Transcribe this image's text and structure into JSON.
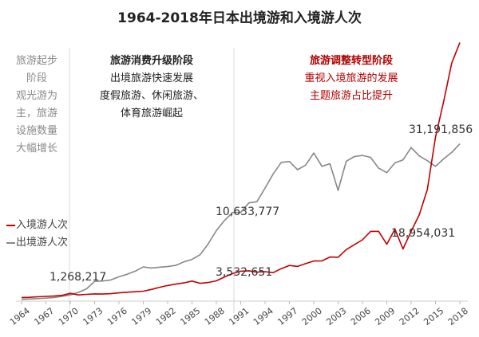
{
  "chart_data": {
    "type": "line",
    "title": "1964-2018年日本出境游和入境游人次",
    "x_tick_labels": [
      "1964",
      "1967",
      "1970",
      "1973",
      "1976",
      "1979",
      "1982",
      "1985",
      "1988",
      "1991",
      "1994",
      "1997",
      "2000",
      "2003",
      "2006",
      "2009",
      "2012",
      "2015",
      "2018"
    ],
    "xlim": [
      1964,
      2018
    ],
    "ylim": [
      0,
      32000000
    ],
    "grid": false,
    "legend_position": "left-middle",
    "series": [
      {
        "name": "入境游人次",
        "color": "#c00000",
        "x": [
          1964,
          1965,
          1966,
          1967,
          1968,
          1969,
          1970,
          1971,
          1972,
          1973,
          1974,
          1975,
          1976,
          1977,
          1978,
          1979,
          1980,
          1981,
          1982,
          1983,
          1984,
          1985,
          1986,
          1987,
          1988,
          1989,
          1990,
          1991,
          1992,
          1993,
          1994,
          1995,
          1996,
          1997,
          1998,
          1999,
          2000,
          2001,
          2002,
          2003,
          2004,
          2005,
          2006,
          2007,
          2008,
          2009,
          2010,
          2011,
          2012,
          2013,
          2014,
          2015,
          2016,
          2017,
          2018
        ],
        "y": [
          350000,
          370000,
          430000,
          480000,
          520000,
          610000,
          850000,
          660000,
          720000,
          780000,
          760000,
          810000,
          910000,
          980000,
          1040000,
          1110000,
          1320000,
          1580000,
          1790000,
          1970000,
          2110000,
          2330000,
          2060000,
          2160000,
          2360000,
          2830000,
          3240000,
          3530000,
          3580000,
          3410000,
          3470000,
          3350000,
          3840000,
          4220000,
          4110000,
          4440000,
          4760000,
          4770000,
          5240000,
          5210000,
          6140000,
          6730000,
          7330000,
          8350000,
          8350000,
          6790000,
          8610000,
          6220000,
          8360000,
          10360000,
          13410000,
          19740000,
          24040000,
          28690000,
          31191856
        ]
      },
      {
        "name": "出境游人次",
        "color": "#888888",
        "x": [
          1964,
          1965,
          1966,
          1967,
          1968,
          1969,
          1970,
          1971,
          1972,
          1973,
          1974,
          1975,
          1976,
          1977,
          1978,
          1979,
          1980,
          1981,
          1982,
          1983,
          1984,
          1985,
          1986,
          1987,
          1988,
          1989,
          1990,
          1991,
          1992,
          1993,
          1994,
          1995,
          1996,
          1997,
          1998,
          1999,
          2000,
          2001,
          2002,
          2003,
          2004,
          2005,
          2006,
          2007,
          2008,
          2009,
          2010,
          2011,
          2012,
          2013,
          2014,
          2015,
          2016,
          2017,
          2018
        ],
        "y": [
          130000,
          160000,
          210000,
          270000,
          340000,
          490000,
          660000,
          960000,
          1390000,
          2290000,
          2340000,
          2470000,
          2850000,
          3150000,
          3530000,
          4040000,
          3910000,
          4010000,
          4090000,
          4230000,
          4660000,
          4950000,
          5520000,
          6830000,
          8430000,
          9660000,
          10630000,
          10630000,
          11790000,
          11930000,
          13580000,
          15300000,
          16690000,
          16800000,
          15810000,
          16360000,
          17820000,
          16220000,
          16520000,
          13300000,
          16830000,
          17400000,
          17530000,
          17300000,
          15990000,
          15450000,
          16640000,
          16990000,
          18490000,
          17470000,
          16900000,
          16210000,
          17120000,
          17890000,
          18954031
        ]
      }
    ],
    "annotations": [
      "31,191,856",
      "18,954,031",
      "10,633,777",
      "3,532,651",
      "1,268,217"
    ]
  },
  "side_text": [
    "旅游起步",
    "阶段",
    "观光游为",
    "主，旅游",
    "设施数量",
    "大幅增长"
  ],
  "stage2": {
    "heading": "旅游消费升级阶段",
    "lines": [
      "出境旅游快速发展",
      "度假旅游、休闲旅游、",
      "体育旅游崛起"
    ]
  },
  "stage3": {
    "heading": "旅游调整转型阶段",
    "lines": [
      "重视入境旅游的发展",
      "主题旅游占比提升"
    ]
  },
  "legend": {
    "inbound": "入境游人次",
    "outbound": "出境游人次"
  },
  "colors": {
    "inbound": "#c00000",
    "outbound": "#888888",
    "stage_text_red": "#b00000",
    "divider": "#d9d9d9"
  }
}
